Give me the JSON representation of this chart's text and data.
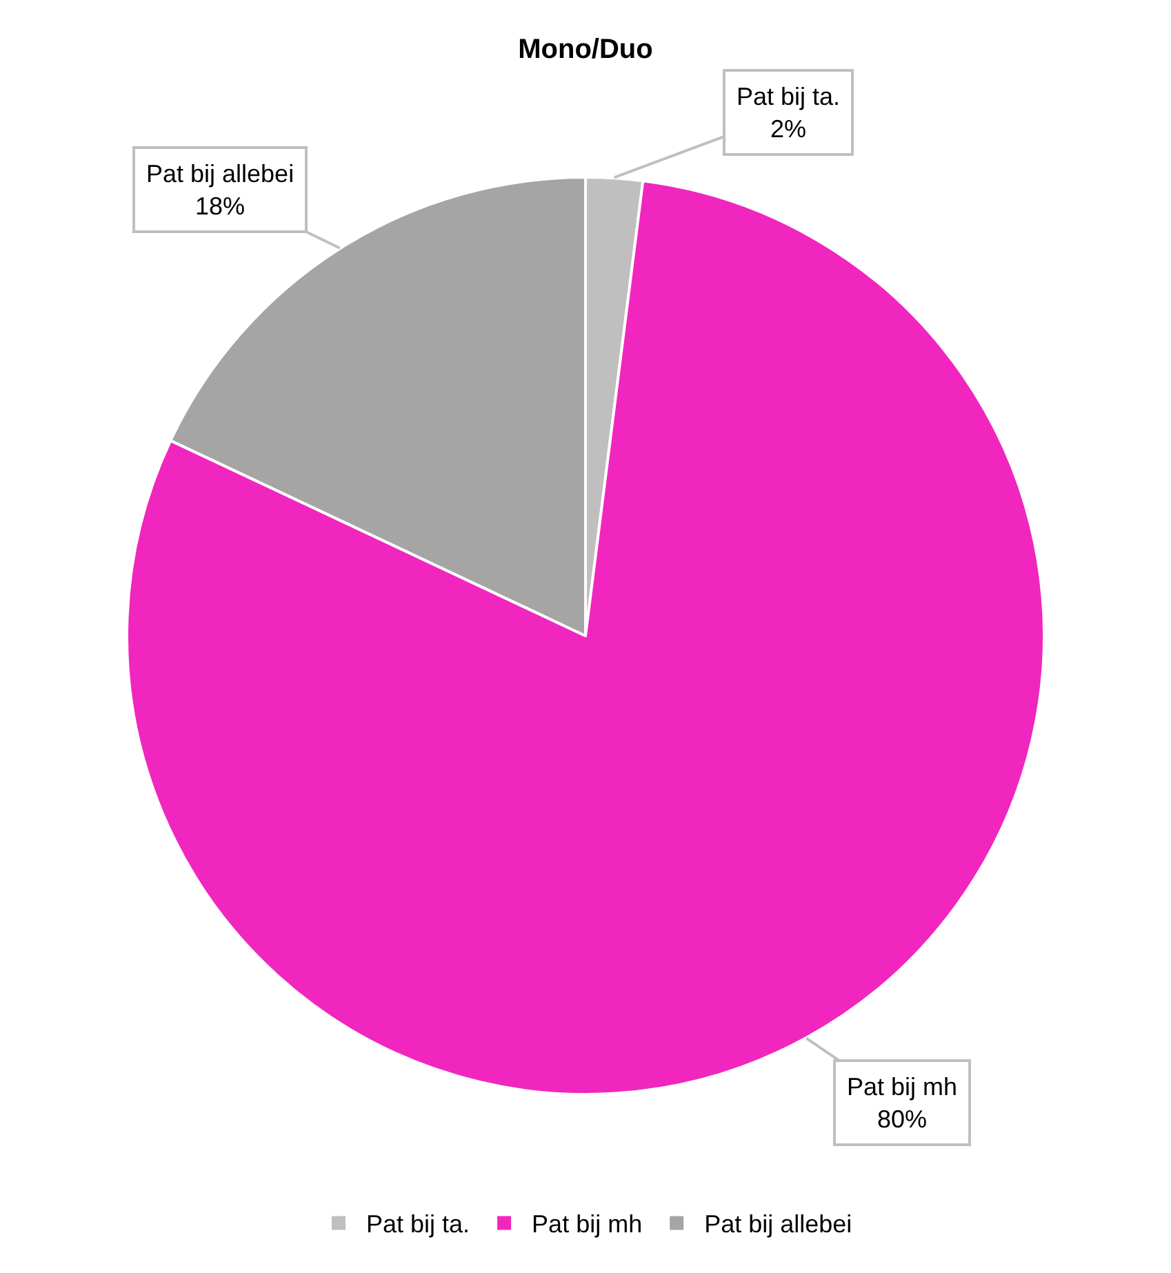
{
  "chart_data": {
    "type": "pie",
    "title": "Mono/Duo",
    "categories": [
      "Pat bij ta.",
      "Pat bij mh",
      "Pat bij allebei"
    ],
    "values": [
      2,
      80,
      18
    ],
    "colors": [
      "#bfbfbf",
      "#f026bf",
      "#a5a5a5"
    ],
    "value_labels": [
      "2%",
      "80%",
      "18%"
    ],
    "legend": "bottom"
  }
}
